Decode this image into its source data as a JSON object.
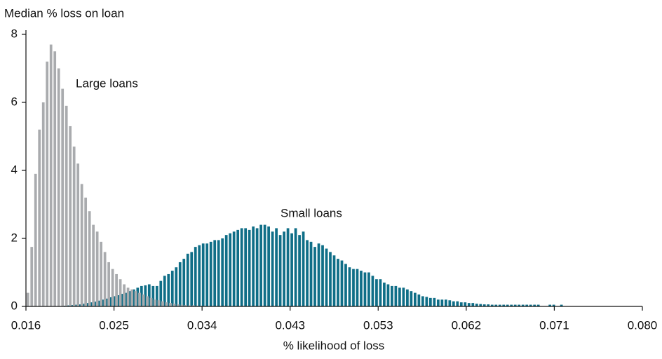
{
  "chart_data": {
    "type": "bar",
    "ylabel": "Median % loss on loan",
    "xlabel": "% likelihood of loss",
    "xlim": [
      0.016,
      0.08
    ],
    "xticks": [
      0.016,
      {
        "value": 0.025143,
        "label": "0.025"
      },
      {
        "value": 0.034286,
        "label": "0.034"
      },
      {
        "value": 0.043429,
        "label": "0.043"
      },
      {
        "value": 0.052571,
        "label": "0.053"
      },
      {
        "value": 0.061714,
        "label": "0.062"
      },
      {
        "value": 0.070857,
        "label": "0.071"
      },
      {
        "value": 0.08,
        "label": "0.080"
      }
    ],
    "ylim": [
      0,
      8
    ],
    "yticks": [
      0,
      2,
      4,
      6,
      8
    ],
    "series": [
      {
        "name": "Small loans",
        "color": "#0f6e87",
        "x0": 0.02,
        "step": 0.0004,
        "values": [
          0.02,
          0.03,
          0.04,
          0.05,
          0.06,
          0.08,
          0.1,
          0.12,
          0.14,
          0.17,
          0.2,
          0.23,
          0.27,
          0.3,
          0.33,
          0.37,
          0.4,
          0.45,
          0.5,
          0.55,
          0.6,
          0.62,
          0.65,
          0.6,
          0.6,
          0.75,
          0.9,
          0.95,
          1.05,
          1.15,
          1.3,
          1.4,
          1.55,
          1.6,
          1.75,
          1.8,
          1.85,
          1.85,
          1.9,
          1.95,
          1.95,
          2.0,
          2.1,
          2.15,
          2.2,
          2.25,
          2.3,
          2.3,
          2.25,
          2.35,
          2.3,
          2.4,
          2.4,
          2.35,
          2.2,
          2.3,
          2.1,
          2.2,
          2.3,
          2.15,
          2.3,
          2.1,
          2.2,
          1.95,
          1.9,
          1.75,
          1.85,
          1.8,
          1.7,
          1.6,
          1.5,
          1.4,
          1.35,
          1.25,
          1.15,
          1.1,
          1.1,
          1.05,
          1.0,
          1.0,
          0.9,
          0.8,
          0.8,
          0.7,
          0.65,
          0.6,
          0.6,
          0.55,
          0.55,
          0.5,
          0.45,
          0.4,
          0.35,
          0.3,
          0.28,
          0.25,
          0.25,
          0.2,
          0.2,
          0.2,
          0.18,
          0.15,
          0.15,
          0.12,
          0.12,
          0.1,
          0.1,
          0.08,
          0.07,
          0.06,
          0.06,
          0.05,
          0.05,
          0.05,
          0.05,
          0.05,
          0.05,
          0.05,
          0.05,
          0.05,
          0.05,
          0.05,
          0.05,
          0.05,
          null,
          null,
          0.05,
          0.05,
          null,
          0.05
        ]
      },
      {
        "name": "Large loans",
        "color": "#a9abae",
        "x0": 0.0162,
        "step": 0.0004,
        "values": [
          0.4,
          1.75,
          3.9,
          5.2,
          6.0,
          7.2,
          7.7,
          7.5,
          7.0,
          6.4,
          5.9,
          5.3,
          4.7,
          4.2,
          3.6,
          3.2,
          2.8,
          2.4,
          2.2,
          1.9,
          1.6,
          1.3,
          1.1,
          0.95,
          0.8,
          0.65,
          0.55,
          0.5,
          0.45,
          0.4,
          0.35,
          0.3,
          0.25,
          0.2,
          0.18,
          0.15,
          0.12,
          0.1,
          0.08,
          0.06,
          0.05,
          0.04,
          0.03,
          0.03,
          0.02,
          0.02,
          0.02,
          0.01,
          0.01,
          0.01
        ]
      }
    ]
  }
}
